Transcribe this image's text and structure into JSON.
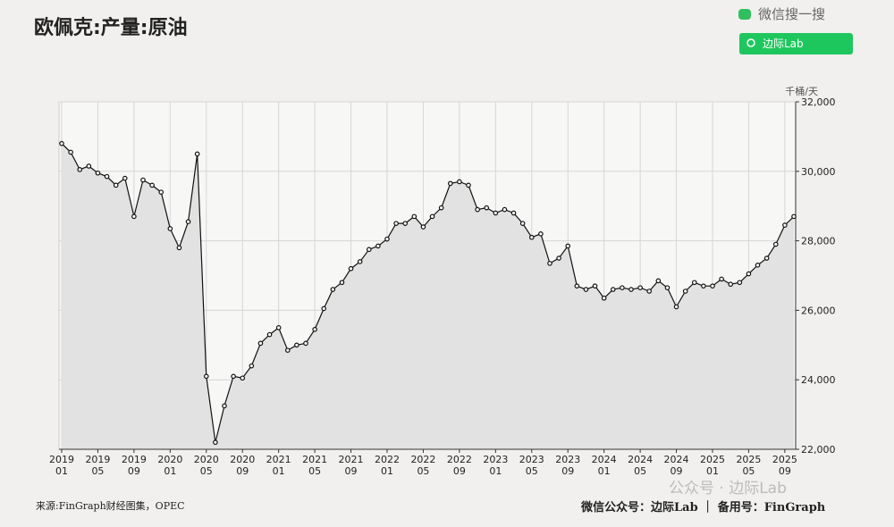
{
  "chart_data": {
    "type": "line",
    "title": "欧佩克:产量:原油",
    "y_unit": "千桶/天",
    "categories": [
      [
        "2019",
        "01"
      ],
      null,
      null,
      null,
      [
        "2019",
        "05"
      ],
      null,
      null,
      null,
      [
        "2019",
        "09"
      ],
      null,
      null,
      null,
      [
        "2020",
        "01"
      ],
      null,
      null,
      null,
      [
        "2020",
        "05"
      ],
      null,
      null,
      null,
      [
        "2020",
        "09"
      ],
      null,
      null,
      null,
      [
        "2021",
        "01"
      ],
      null,
      null,
      null,
      [
        "2021",
        "05"
      ],
      null,
      null,
      null,
      [
        "2021",
        "09"
      ],
      null,
      null,
      null,
      [
        "2022",
        "01"
      ],
      null,
      null,
      null,
      [
        "2022",
        "05"
      ],
      null,
      null,
      null,
      [
        "2022",
        "09"
      ],
      null,
      null,
      null,
      [
        "2023",
        "01"
      ],
      null,
      null,
      null,
      [
        "2023",
        "05"
      ],
      null,
      null,
      null,
      [
        "2023",
        "09"
      ],
      null,
      null,
      null,
      [
        "2024",
        "01"
      ],
      null,
      null,
      null,
      [
        "2024",
        "05"
      ],
      null,
      null,
      null,
      [
        "2024",
        "09"
      ],
      null,
      null,
      null,
      [
        "2025",
        "01"
      ],
      null,
      null,
      null,
      [
        "2025",
        "05"
      ],
      null,
      null,
      null,
      [
        "2025",
        "09"
      ],
      null
    ],
    "values": [
      30800,
      30550,
      30050,
      30150,
      29950,
      29850,
      29600,
      29800,
      28700,
      29750,
      29600,
      29400,
      28350,
      27800,
      28550,
      30500,
      24100,
      22200,
      23250,
      24100,
      24050,
      24400,
      25050,
      25300,
      25500,
      24850,
      25000,
      25050,
      25450,
      26050,
      26600,
      26800,
      27200,
      27400,
      27750,
      27850,
      28050,
      28500,
      28500,
      28700,
      28400,
      28700,
      28950,
      29650,
      29700,
      29600,
      28900,
      28950,
      28800,
      28900,
      28800,
      28500,
      28100,
      28200,
      27350,
      27500,
      27850,
      26700,
      26600,
      26700,
      26350,
      26600,
      26650,
      26600,
      26650,
      26550,
      26850,
      26650,
      26100,
      26550,
      26800,
      26700,
      26700,
      26900,
      26750,
      26800,
      27050,
      27300,
      27500,
      27900,
      28450,
      28700
    ],
    "color": "#111111",
    "area_color": "#e2e2e2",
    "ylim": [
      22000,
      32000
    ],
    "yticks": [
      {
        "value": 22000,
        "label": "22,000"
      },
      {
        "value": 24000,
        "label": "24,000"
      },
      {
        "value": 26000,
        "label": "26,000"
      },
      {
        "value": 28000,
        "label": "28,000"
      },
      {
        "value": 30000,
        "label": "30,000"
      },
      {
        "value": 32000,
        "label": "32,000"
      }
    ],
    "grid": true
  },
  "header": {
    "search_label": "微信搜一搜",
    "search_button": "边际Lab"
  },
  "footer": {
    "source": "来源:FinGraph财经图集，OPEC",
    "watermark": "公众号 · 边际Lab",
    "account": "微信公众号：边际Lab ｜ 备用号：FinGraph"
  }
}
